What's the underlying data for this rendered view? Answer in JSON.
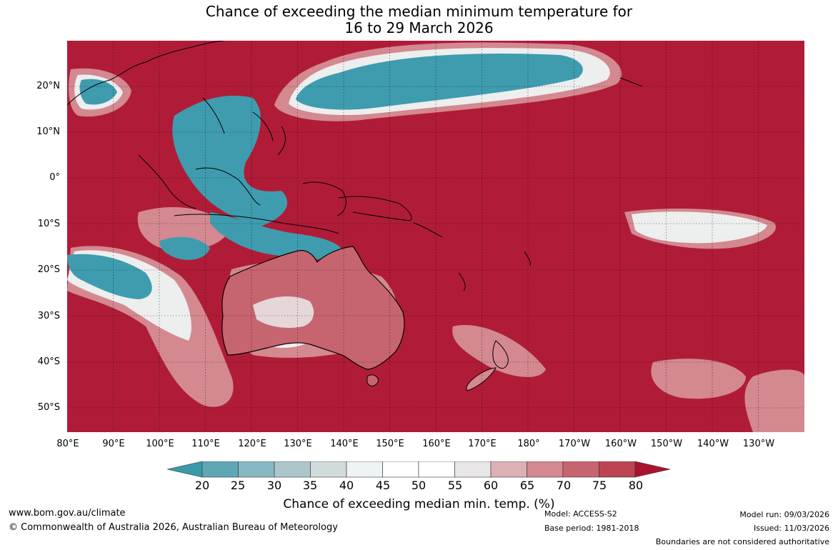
{
  "title_line1": "Chance of exceeding the median minimum temperature for",
  "title_line2": "16 to 29 March 2026",
  "lat_labels": [
    "20°N",
    "10°N",
    "0°",
    "10°S",
    "20°S",
    "30°S",
    "40°S",
    "50°S"
  ],
  "lon_labels": [
    "80°E",
    "90°E",
    "100°E",
    "110°E",
    "120°E",
    "130°E",
    "140°E",
    "150°E",
    "160°E",
    "170°E",
    "180°",
    "170°W",
    "160°W",
    "150°W",
    "140°W",
    "130°W"
  ],
  "colorbar": {
    "ticks": [
      "20",
      "25",
      "30",
      "35",
      "40",
      "45",
      "50",
      "55",
      "60",
      "65",
      "70",
      "75",
      "80"
    ],
    "colors": [
      "#3b9aaa",
      "#5fa7b5",
      "#86b9c3",
      "#adc6cc",
      "#d2dbdc",
      "#eef3f3",
      "#ffffff",
      "#ffffff",
      "#e9e6e8",
      "#ddb0b6",
      "#d48890",
      "#c66570",
      "#bc4452",
      "#a8142e"
    ],
    "label": "Chance of exceeding median min. temp. (%)"
  },
  "footer": {
    "website": "www.bom.gov.au/climate",
    "copyright": "© Commonwealth of Australia 2026, Australian Bureau of Meteorology",
    "model": "Model: ACCESS-S2",
    "base_period": "Base period: 1981-2018",
    "model_run": "Model run: 09/03/2026",
    "issued": "Issued: 11/03/2026",
    "disclaimer": "Boundaries are not considered authoritative"
  }
}
